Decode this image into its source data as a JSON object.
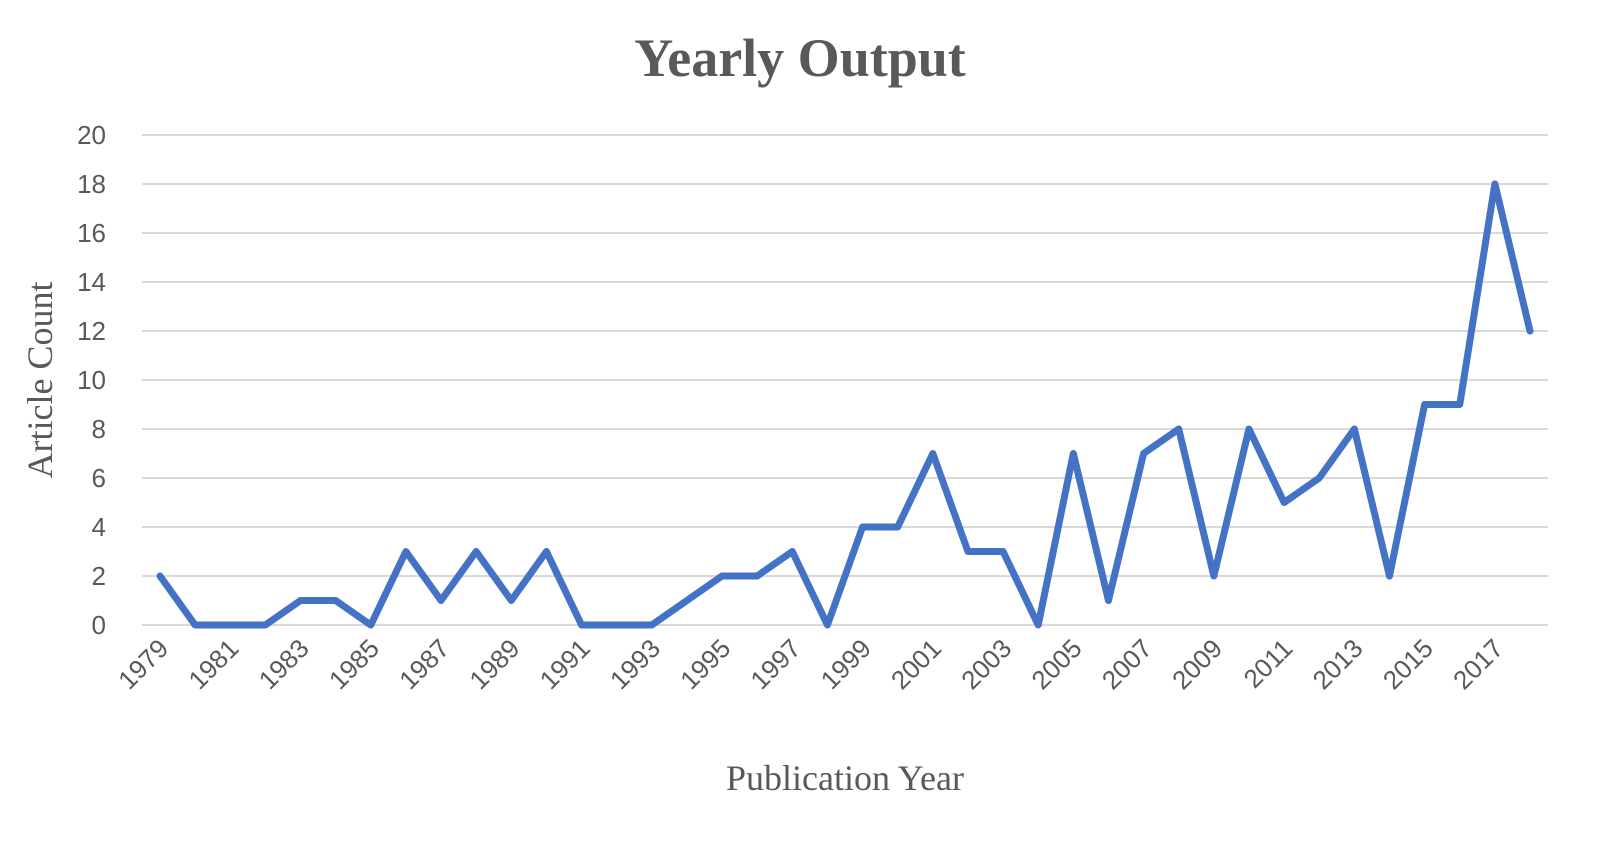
{
  "chart_data": {
    "type": "line",
    "title": "Yearly Output",
    "xlabel": "Publication Year",
    "ylabel": "Article Count",
    "ylim": [
      0,
      20
    ],
    "yticks": [
      0,
      2,
      4,
      6,
      8,
      10,
      12,
      14,
      16,
      18,
      20
    ],
    "x": [
      1979,
      1980,
      1981,
      1982,
      1983,
      1984,
      1985,
      1986,
      1987,
      1988,
      1989,
      1990,
      1991,
      1992,
      1993,
      1994,
      1995,
      1996,
      1997,
      1998,
      1999,
      2000,
      2001,
      2002,
      2003,
      2004,
      2005,
      2006,
      2007,
      2008,
      2009,
      2010,
      2011,
      2012,
      2013,
      2014,
      2015,
      2016,
      2017,
      2018
    ],
    "xtick_labels": [
      "1979",
      "1981",
      "1983",
      "1985",
      "1987",
      "1989",
      "1991",
      "1993",
      "1995",
      "1997",
      "1999",
      "2001",
      "2003",
      "2005",
      "2007",
      "2009",
      "2011",
      "2013",
      "2015",
      "2017"
    ],
    "series": [
      {
        "values": [
          2,
          0,
          0,
          0,
          1,
          1,
          0,
          3,
          1,
          3,
          1,
          3,
          0,
          0,
          0,
          1,
          2,
          2,
          3,
          0,
          4,
          4,
          7,
          3,
          3,
          0,
          7,
          1,
          7,
          8,
          2,
          8,
          5,
          6,
          8,
          2,
          9,
          9,
          18,
          12
        ],
        "color": "#4472C4"
      }
    ],
    "grid": true,
    "legend": "none"
  }
}
